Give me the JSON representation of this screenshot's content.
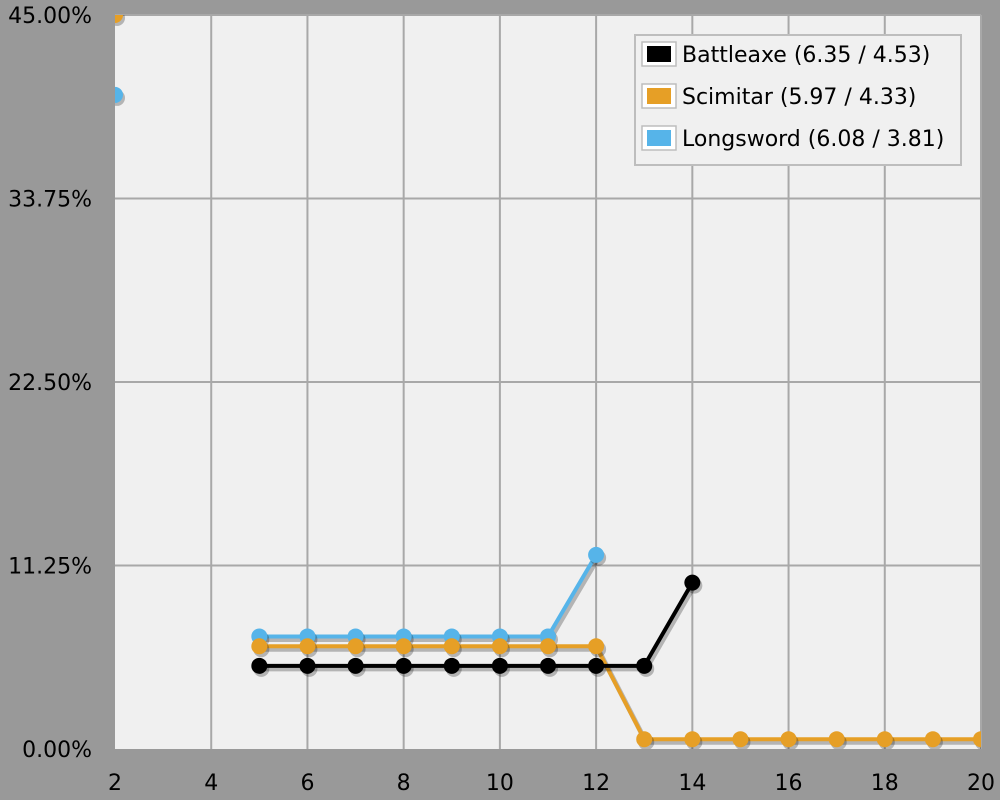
{
  "chart_data": {
    "type": "line",
    "title": "",
    "xlabel": "",
    "ylabel": "",
    "xlim": [
      2,
      20
    ],
    "ylim": [
      0,
      45
    ],
    "x_ticks": [
      2,
      4,
      6,
      8,
      10,
      12,
      14,
      16,
      18,
      20
    ],
    "y_ticks": [
      {
        "value": 0,
        "label": "0.00%"
      },
      {
        "value": 11.25,
        "label": "11.25%"
      },
      {
        "value": 22.5,
        "label": "22.50%"
      },
      {
        "value": 33.75,
        "label": "33.75%"
      },
      {
        "value": 45,
        "label": "45.00%"
      }
    ],
    "grid": true,
    "legend_position": "top-right",
    "series": [
      {
        "name": "Battleaxe (6.35 / 4.53)",
        "color": "#000000",
        "points": [
          [
            5,
            5.1
          ],
          [
            6,
            5.1
          ],
          [
            7,
            5.1
          ],
          [
            8,
            5.1
          ],
          [
            9,
            5.1
          ],
          [
            10,
            5.1
          ],
          [
            11,
            5.1
          ],
          [
            12,
            5.1
          ],
          [
            13,
            5.1
          ],
          [
            14,
            10.2
          ]
        ]
      },
      {
        "name": "Scimitar (5.97 / 4.33)",
        "color": "#E69F26",
        "points": [
          [
            2,
            45.0
          ],
          [
            5,
            6.3
          ],
          [
            6,
            6.3
          ],
          [
            7,
            6.3
          ],
          [
            8,
            6.3
          ],
          [
            9,
            6.3
          ],
          [
            10,
            6.3
          ],
          [
            11,
            6.3
          ],
          [
            12,
            6.3
          ],
          [
            13,
            0.6
          ],
          [
            14,
            0.6
          ],
          [
            15,
            0.6
          ],
          [
            16,
            0.6
          ],
          [
            17,
            0.6
          ],
          [
            18,
            0.6
          ],
          [
            19,
            0.6
          ],
          [
            20,
            0.6
          ]
        ]
      },
      {
        "name": "Longsword (6.08 / 3.81)",
        "color": "#56B4E9",
        "points": [
          [
            2,
            40.1
          ],
          [
            5,
            6.9
          ],
          [
            6,
            6.9
          ],
          [
            7,
            6.9
          ],
          [
            8,
            6.9
          ],
          [
            9,
            6.9
          ],
          [
            10,
            6.9
          ],
          [
            11,
            6.9
          ],
          [
            12,
            11.9
          ]
        ]
      }
    ]
  }
}
